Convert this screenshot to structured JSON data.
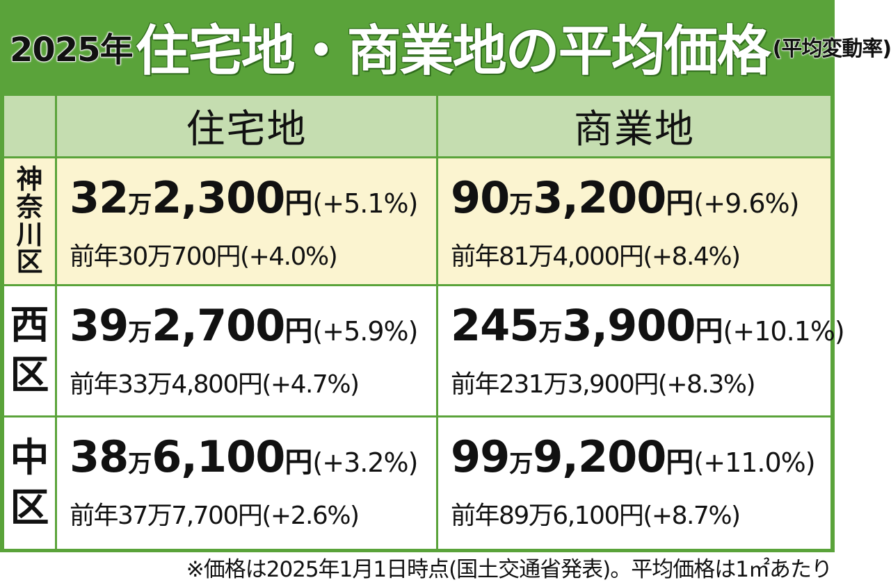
{
  "header": {
    "year": "2025年",
    "title": "住宅地・商業地の平均価格",
    "subtitle": "(平均変動率)"
  },
  "columns": {
    "residential": "住宅地",
    "commercial": "商業地"
  },
  "rows": [
    {
      "ward_chars": [
        "神",
        "奈",
        "川",
        "区"
      ],
      "residential": {
        "man": "32",
        "man_unit": "万",
        "rest": "2,300",
        "yen": "円",
        "change": "(+5.1%)",
        "prev": "前年30万700円(+4.0%)"
      },
      "commercial": {
        "man": "90",
        "man_unit": "万",
        "rest": "3,200",
        "yen": "円",
        "change": "(+9.6%)",
        "prev": "前年81万4,000円(+8.4%)"
      }
    },
    {
      "ward_chars": [
        "西",
        "区"
      ],
      "residential": {
        "man": "39",
        "man_unit": "万",
        "rest": "2,700",
        "yen": "円",
        "change": "(+5.9%)",
        "prev": "前年33万4,800円(+4.7%)"
      },
      "commercial": {
        "man": "245",
        "man_unit": "万",
        "rest": "3,900",
        "yen": "円",
        "change": "(+10.1%)",
        "prev": "前年231万3,900円(+8.3%)"
      }
    },
    {
      "ward_chars": [
        "中",
        "区"
      ],
      "residential": {
        "man": "38",
        "man_unit": "万",
        "rest": "6,100",
        "yen": "円",
        "change": "(+3.2%)",
        "prev": "前年37万7,700円(+2.6%)"
      },
      "commercial": {
        "man": "99",
        "man_unit": "万",
        "rest": "9,200",
        "yen": "円",
        "change": "(+11.0%)",
        "prev": "前年89万6,100円(+8.7%)"
      }
    }
  ],
  "footnote": "※価格は2025年1月1日時点(国土交通省発表)。平均価格は1㎡あたり",
  "colors": {
    "green": "#5aa33a",
    "header_cell": "#c5ddb0",
    "highlight_row": "#fbf4d0"
  }
}
